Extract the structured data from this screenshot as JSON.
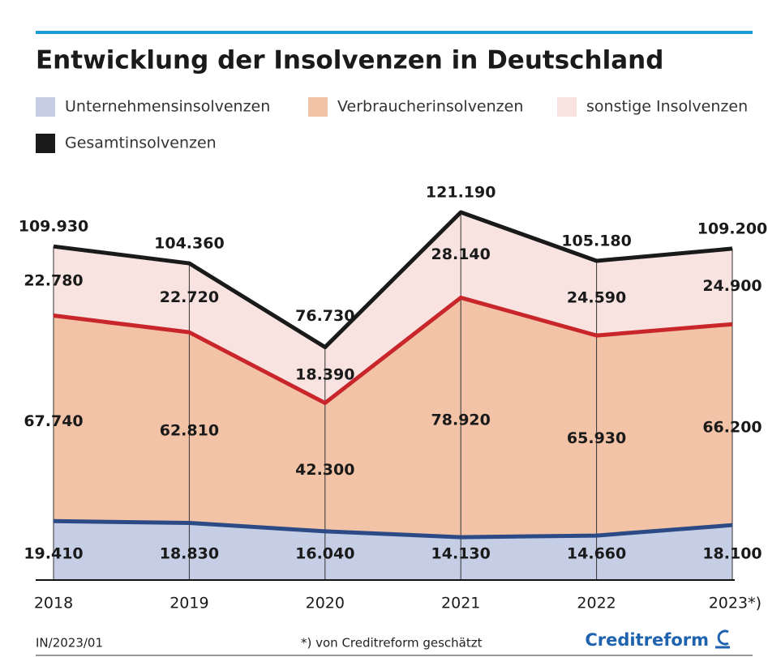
{
  "chart_data": {
    "type": "area",
    "title": "Entwicklung der Insolvenzen in Deutschland",
    "categories": [
      "2018",
      "2019",
      "2020",
      "2021",
      "2022",
      "2023*)"
    ],
    "series": [
      {
        "name": "Unternehmensinsolvenzen",
        "type": "area",
        "color": "#c6cee6",
        "line_color": "#2b4a86",
        "values": [
          19410,
          18830,
          16040,
          14130,
          14660,
          18100
        ],
        "value_labels": [
          "19.410",
          "18.830",
          "16.040",
          "14.130",
          "14.660",
          "18.100"
        ]
      },
      {
        "name": "Verbraucherinsolvenzen",
        "type": "area",
        "color": "#f2c3a7",
        "line_color": "#c8262a",
        "values": [
          67740,
          62810,
          42300,
          78920,
          65930,
          66200
        ],
        "value_labels": [
          "67.740",
          "62.810",
          "42.300",
          "78.920",
          "65.930",
          "66.200"
        ]
      },
      {
        "name": "sonstige Insolvenzen",
        "type": "area",
        "color": "#f8e3e0",
        "values": [
          22780,
          22720,
          18390,
          28140,
          24590,
          24900
        ],
        "value_labels": [
          "22.780",
          "22.720",
          "18.390",
          "28.140",
          "24.590",
          "24.900"
        ]
      },
      {
        "name": "Gesamtinsolvenzen",
        "type": "line",
        "color": "#1a1a1a",
        "values": [
          109930,
          104360,
          76730,
          121190,
          105180,
          109200
        ],
        "value_labels": [
          "109.930",
          "104.360",
          "76.730",
          "121.190",
          "105.180",
          "109.200"
        ]
      }
    ],
    "ylim": [
      0,
      130000
    ],
    "footer": {
      "code": "IN/2023/01",
      "note": "*) von Creditreform geschätzt",
      "brand": "Creditreform"
    }
  }
}
